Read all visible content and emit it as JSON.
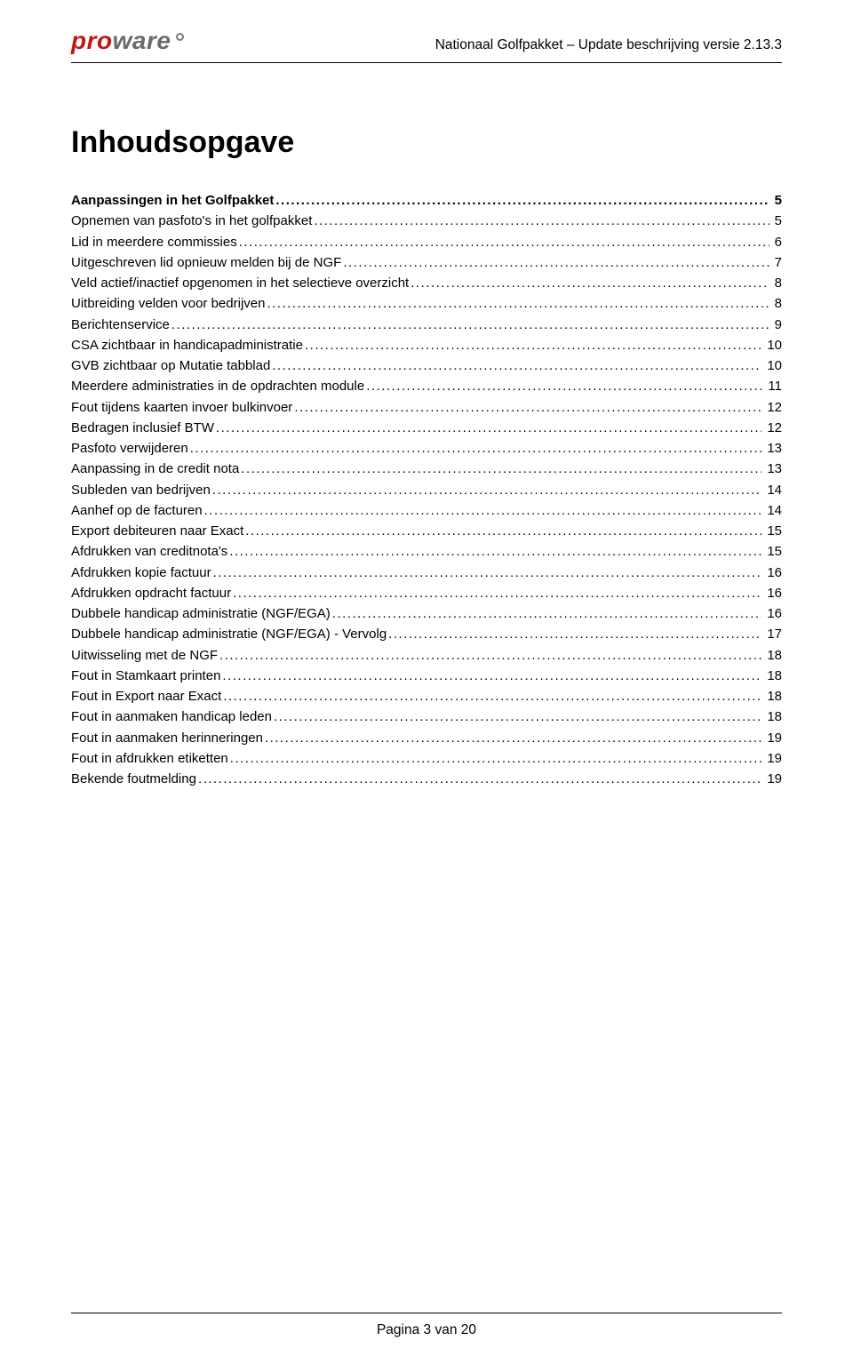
{
  "colors": {
    "logo_red": "#c01818",
    "logo_grey": "#6b6b6b",
    "rule": "#000000",
    "text": "#000000",
    "background": "#ffffff"
  },
  "typography": {
    "body_font": "Verdana",
    "title_fontsize_pt": 26,
    "body_fontsize_pt": 11,
    "header_fontsize_pt": 12
  },
  "logo": {
    "part1": "pro",
    "part2": "ware"
  },
  "header_subtitle": "Nationaal Golfpakket – Update beschrijving versie 2.13.3",
  "title": "Inhoudsopgave",
  "toc": [
    {
      "label": "Aanpassingen in het Golfpakket",
      "page": "5",
      "bold": true
    },
    {
      "label": "Opnemen van pasfoto's in het golfpakket",
      "page": "5",
      "bold": false
    },
    {
      "label": "Lid in meerdere commissies",
      "page": "6",
      "bold": false
    },
    {
      "label": "Uitgeschreven lid opnieuw melden bij de NGF",
      "page": "7",
      "bold": false
    },
    {
      "label": "Veld actief/inactief opgenomen in het selectieve overzicht",
      "page": "8",
      "bold": false
    },
    {
      "label": "Uitbreiding velden voor bedrijven",
      "page": "8",
      "bold": false
    },
    {
      "label": "Berichtenservice",
      "page": "9",
      "bold": false
    },
    {
      "label": "CSA zichtbaar in handicapadministratie",
      "page": "10",
      "bold": false
    },
    {
      "label": "GVB zichtbaar op Mutatie tabblad",
      "page": "10",
      "bold": false
    },
    {
      "label": "Meerdere administraties in de opdrachten module",
      "page": "11",
      "bold": false
    },
    {
      "label": "Fout tijdens kaarten invoer bulkinvoer",
      "page": "12",
      "bold": false
    },
    {
      "label": "Bedragen inclusief BTW",
      "page": "12",
      "bold": false
    },
    {
      "label": "Pasfoto verwijderen",
      "page": "13",
      "bold": false
    },
    {
      "label": "Aanpassing in de credit nota",
      "page": "13",
      "bold": false
    },
    {
      "label": "Subleden van bedrijven",
      "page": "14",
      "bold": false
    },
    {
      "label": "Aanhef op de facturen",
      "page": "14",
      "bold": false
    },
    {
      "label": "Export debiteuren naar Exact",
      "page": "15",
      "bold": false
    },
    {
      "label": "Afdrukken van creditnota's",
      "page": "15",
      "bold": false
    },
    {
      "label": "Afdrukken kopie factuur",
      "page": "16",
      "bold": false
    },
    {
      "label": "Afdrukken opdracht factuur",
      "page": "16",
      "bold": false
    },
    {
      "label": "Dubbele handicap administratie (NGF/EGA)",
      "page": "16",
      "bold": false
    },
    {
      "label": "Dubbele handicap administratie (NGF/EGA) - Vervolg",
      "page": "17",
      "bold": false
    },
    {
      "label": "Uitwisseling met de NGF",
      "page": "18",
      "bold": false
    },
    {
      "label": "Fout in Stamkaart printen",
      "page": "18",
      "bold": false
    },
    {
      "label": "Fout in Export naar Exact",
      "page": "18",
      "bold": false
    },
    {
      "label": "Fout in aanmaken handicap leden",
      "page": "18",
      "bold": false
    },
    {
      "label": "Fout in aanmaken herinneringen",
      "page": "19",
      "bold": false
    },
    {
      "label": "Fout in afdrukken etiketten",
      "page": "19",
      "bold": false
    },
    {
      "label": "Bekende foutmelding",
      "page": "19",
      "bold": false
    }
  ],
  "footer": "Pagina 3 van 20"
}
